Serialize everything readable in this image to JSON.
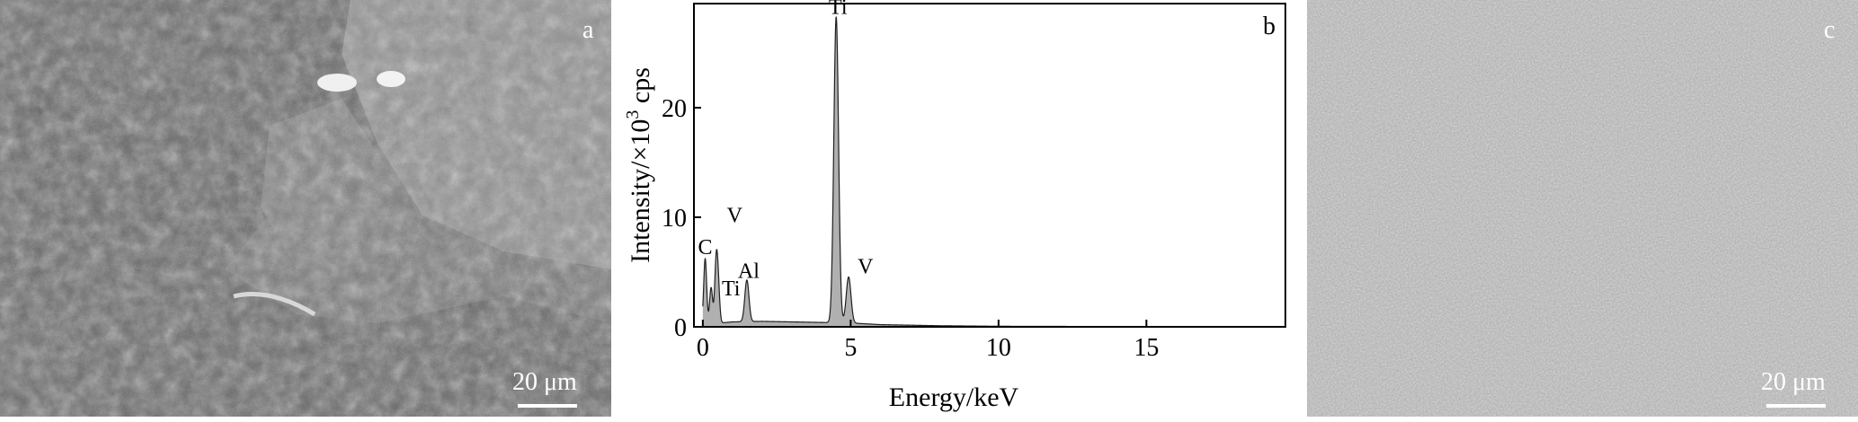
{
  "figure": {
    "panel_a": {
      "letter": "a",
      "scale_bar": "20 μm"
    },
    "panel_b": {
      "letter": "b"
    },
    "panel_c": {
      "letter": "c",
      "scale_bar": "20 μm"
    }
  },
  "chart_data": {
    "type": "line",
    "title": "",
    "xlabel": "Energy/keV",
    "ylabel_main": "Intensity/×10",
    "ylabel_sup": "3",
    "ylabel_unit": " cps",
    "xlim": [
      -0.3,
      19.7
    ],
    "ylim": [
      0,
      29.5
    ],
    "xticks": [
      0,
      5,
      10,
      15
    ],
    "yticks": [
      0,
      10,
      20
    ],
    "grid": false,
    "series": [
      {
        "values_description_free": true,
        "peaks": [
          {
            "x": 0.08,
            "y": 6.0,
            "w": 0.05
          },
          {
            "x": 0.28,
            "y": 3.3,
            "w": 0.05
          },
          {
            "x": 0.45,
            "y": 5.2,
            "w": 0.05
          },
          {
            "x": 0.52,
            "y": 3.2,
            "w": 0.05
          },
          {
            "x": 1.49,
            "y": 3.8,
            "w": 0.07
          },
          {
            "x": 4.51,
            "y": 27.9,
            "w": 0.08
          },
          {
            "x": 4.93,
            "y": 4.2,
            "w": 0.08
          }
        ],
        "background": [
          {
            "x": 0.0,
            "y": 0.2
          },
          {
            "x": 1.0,
            "y": 0.45
          },
          {
            "x": 2.0,
            "y": 0.5
          },
          {
            "x": 3.0,
            "y": 0.45
          },
          {
            "x": 4.0,
            "y": 0.4
          },
          {
            "x": 5.0,
            "y": 0.35
          },
          {
            "x": 6.0,
            "y": 0.2
          },
          {
            "x": 8.0,
            "y": 0.1
          },
          {
            "x": 10.0,
            "y": 0.05
          },
          {
            "x": 19.7,
            "y": 0.0
          }
        ]
      }
    ],
    "peak_labels": [
      {
        "text": "Ti",
        "x": 4.51,
        "y": 27.9
      },
      {
        "text": "V",
        "x": 4.93,
        "y": 4.2
      },
      {
        "text": "Al",
        "x": 1.49,
        "y": 3.8
      },
      {
        "text": "C",
        "x": 0.08,
        "y": 6.0
      },
      {
        "text": "V",
        "x": 0.45,
        "y": 8.4
      },
      {
        "text": "Ti",
        "x": 0.52,
        "y": 2.2
      }
    ]
  }
}
